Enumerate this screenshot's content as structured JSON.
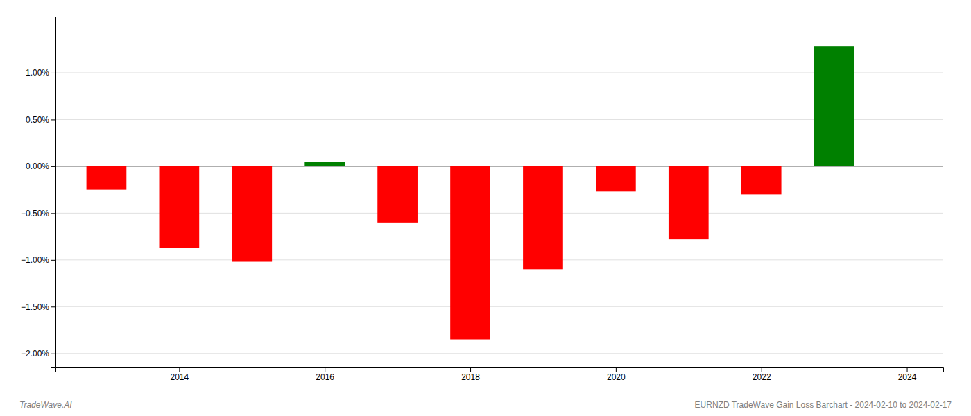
{
  "chart_data": {
    "type": "bar",
    "title": "EURNZD TradeWave Gain Loss Barchart - 2024-02-10 to 2024-02-17",
    "annotations": [
      "TradeWave.AI"
    ],
    "x": [
      2013,
      2014,
      2015,
      2016,
      2017,
      2018,
      2019,
      2020,
      2021,
      2022,
      2023
    ],
    "values": [
      -0.0025,
      -0.0087,
      -0.0102,
      0.0005,
      -0.006,
      -0.0185,
      -0.011,
      -0.0027,
      -0.0078,
      -0.003,
      0.0128
    ],
    "colors": [
      "red",
      "red",
      "red",
      "green",
      "red",
      "red",
      "red",
      "red",
      "red",
      "red",
      "green"
    ],
    "xlim": [
      2012.3,
      2024.5
    ],
    "xticks": [
      2014,
      2016,
      2018,
      2020,
      2022,
      2024
    ],
    "ylim": [
      -0.0215,
      0.016
    ],
    "yticks": [
      {
        "value": -0.02,
        "label": "−2.00%"
      },
      {
        "value": -0.015,
        "label": "−1.50%"
      },
      {
        "value": -0.01,
        "label": "−1.00%"
      },
      {
        "value": -0.005,
        "label": "−0.50%"
      },
      {
        "value": 0.0,
        "label": "0.00%"
      },
      {
        "value": 0.005,
        "label": "0.50%"
      },
      {
        "value": 0.01,
        "label": "1.00%"
      }
    ],
    "grid": true
  }
}
